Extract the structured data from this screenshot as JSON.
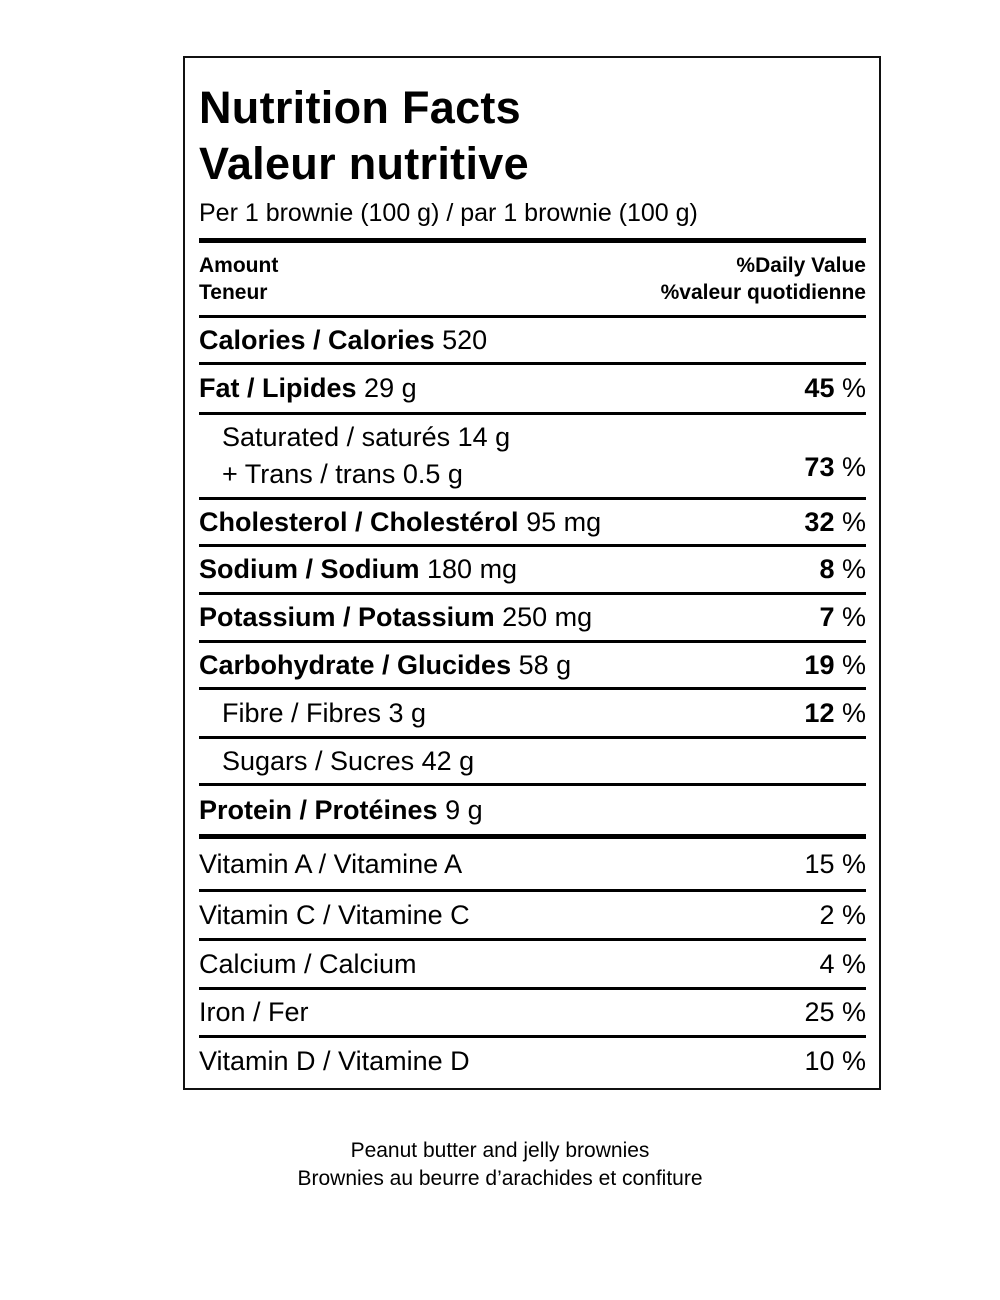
{
  "title_en": "Nutrition Facts",
  "title_fr": "Valeur nutritive",
  "serving": "Per 1 brownie (100 g) / par 1 brownie (100 g)",
  "header": {
    "amount": "Amount",
    "teneur": "Teneur",
    "dv": "%Daily Value",
    "vq": "%valeur quotidienne"
  },
  "calories": {
    "label": "Calories / Calories",
    "value": "520"
  },
  "nutrients": [
    {
      "label": "Fat / Lipides",
      "value": "29 g",
      "pct": "45",
      "unit": "%"
    },
    {
      "label": "Saturated / saturés 14 g",
      "label2": "+ Trans / trans 0.5 g",
      "pct": "73",
      "unit": "%"
    },
    {
      "label": "Cholesterol / Cholestérol",
      "value": "95 mg",
      "pct": "32",
      "unit": "%"
    },
    {
      "label": "Sodium / Sodium",
      "value": "180 mg",
      "pct": "8",
      "unit": "%"
    },
    {
      "label": "Potassium / Potassium",
      "value": "250 mg",
      "pct": "7",
      "unit": "%"
    },
    {
      "label": "Carbohydrate / Glucides",
      "value": "58 g",
      "pct": "19",
      "unit": "%"
    },
    {
      "label": "Fibre / Fibres 3 g",
      "pct": "12",
      "unit": "%"
    },
    {
      "label": "Sugars / Sucres 42 g"
    },
    {
      "label": "Protein / Protéines",
      "value": "9 g"
    }
  ],
  "vitamins": [
    {
      "label": "Vitamin A / Vitamine A",
      "pct": "15 %"
    },
    {
      "label": "Vitamin C / Vitamine C",
      "pct": "2 %"
    },
    {
      "label": "Calcium / Calcium",
      "pct": "4 %"
    },
    {
      "label": "Iron / Fer",
      "pct": "25 %"
    },
    {
      "label": "Vitamin D / Vitamine D",
      "pct": "10 %"
    }
  ],
  "caption": [
    "Peanut butter and jelly brownies",
    "Brownies au beurre d’arachides et confiture"
  ]
}
